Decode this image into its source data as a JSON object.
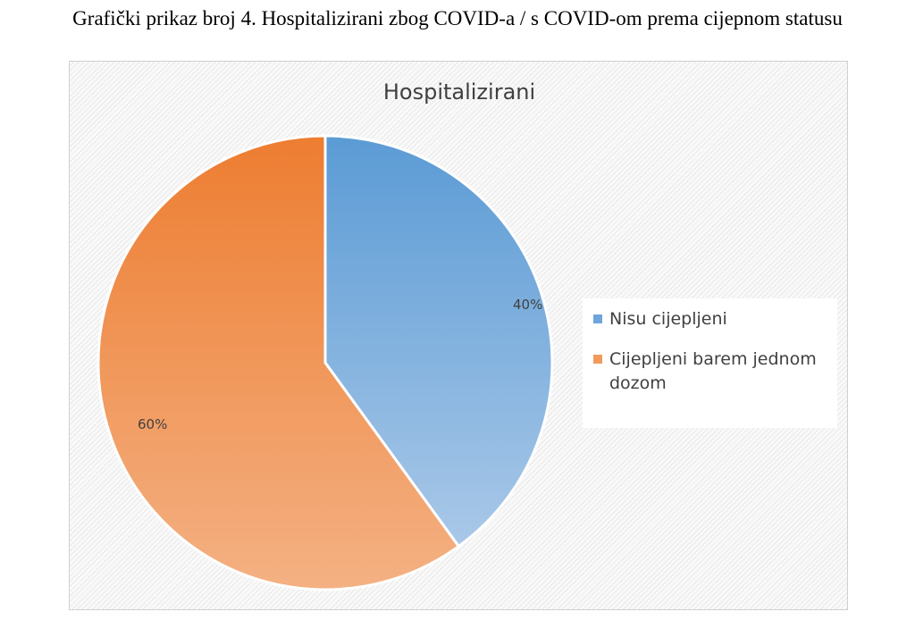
{
  "caption": "Grafički prikaz broj 4. Hospitalizirani zbog COVID-a / s COVID-om prema cijepnom statusu",
  "chart_data": {
    "type": "pie",
    "title": "Hospitalizirani",
    "categories": [
      "Nisu cijepljeni",
      "Cijepljeni barem jednom dozom"
    ],
    "values": [
      40,
      60
    ],
    "labels": [
      "40%",
      "60%"
    ],
    "colors": [
      "#5b9bd5",
      "#ed7d31"
    ],
    "legend_position": "right",
    "legend": [
      "Nisu cijepljeni",
      "Cijepljeni barem jednom dozom"
    ]
  }
}
